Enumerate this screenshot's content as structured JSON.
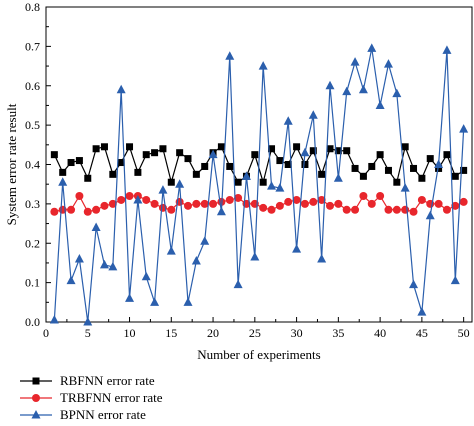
{
  "chart_data": {
    "type": "line",
    "xlabel": "Number of experiments",
    "ylabel": "System error rate result",
    "xlim": [
      0,
      51
    ],
    "ylim": [
      0.0,
      0.8
    ],
    "xticks": [
      0,
      5,
      10,
      15,
      20,
      25,
      30,
      35,
      40,
      45,
      50
    ],
    "yticks": [
      0.0,
      0.1,
      0.2,
      0.3,
      0.4,
      0.5,
      0.6,
      0.7,
      0.8
    ],
    "x": [
      1,
      2,
      3,
      4,
      5,
      6,
      7,
      8,
      9,
      10,
      11,
      12,
      13,
      14,
      15,
      16,
      17,
      18,
      19,
      20,
      21,
      22,
      23,
      24,
      25,
      26,
      27,
      28,
      29,
      30,
      31,
      32,
      33,
      34,
      35,
      36,
      37,
      38,
      39,
      40,
      41,
      42,
      43,
      44,
      45,
      46,
      47,
      48,
      49,
      50
    ],
    "grid": false,
    "legend_position": "bottom-left",
    "series": [
      {
        "name": "RBFNN error rate",
        "color": "#000000",
        "marker": "square",
        "values": [
          0.425,
          0.38,
          0.405,
          0.41,
          0.365,
          0.44,
          0.445,
          0.375,
          0.405,
          0.445,
          0.38,
          0.425,
          0.43,
          0.44,
          0.355,
          0.43,
          0.415,
          0.375,
          0.395,
          0.43,
          0.445,
          0.395,
          0.355,
          0.37,
          0.425,
          0.355,
          0.44,
          0.41,
          0.4,
          0.445,
          0.4,
          0.435,
          0.375,
          0.44,
          0.435,
          0.435,
          0.39,
          0.37,
          0.395,
          0.425,
          0.385,
          0.355,
          0.445,
          0.39,
          0.365,
          0.415,
          0.39,
          0.425,
          0.37,
          0.385
        ]
      },
      {
        "name": "TRBFNN error rate",
        "color": "#e8262c",
        "marker": "circle",
        "values": [
          0.28,
          0.285,
          0.285,
          0.32,
          0.28,
          0.285,
          0.295,
          0.3,
          0.31,
          0.32,
          0.32,
          0.31,
          0.3,
          0.29,
          0.285,
          0.305,
          0.295,
          0.3,
          0.3,
          0.3,
          0.305,
          0.31,
          0.315,
          0.3,
          0.3,
          0.29,
          0.285,
          0.295,
          0.305,
          0.31,
          0.3,
          0.305,
          0.31,
          0.295,
          0.3,
          0.285,
          0.285,
          0.32,
          0.3,
          0.32,
          0.285,
          0.285,
          0.285,
          0.28,
          0.31,
          0.3,
          0.3,
          0.285,
          0.295,
          0.305
        ]
      },
      {
        "name": "BPNN error rate",
        "color": "#2b5fad",
        "marker": "triangle",
        "values": [
          0.005,
          0.355,
          0.105,
          0.16,
          0.0,
          0.24,
          0.145,
          0.14,
          0.59,
          0.06,
          0.31,
          0.115,
          0.05,
          0.335,
          0.18,
          0.35,
          0.05,
          0.155,
          0.205,
          0.425,
          0.28,
          0.675,
          0.095,
          0.37,
          0.165,
          0.65,
          0.345,
          0.34,
          0.51,
          0.185,
          0.43,
          0.525,
          0.16,
          0.6,
          0.365,
          0.585,
          0.66,
          0.59,
          0.695,
          0.55,
          0.655,
          0.58,
          0.34,
          0.095,
          0.025,
          0.27,
          0.4,
          0.69,
          0.105,
          0.49
        ]
      }
    ]
  }
}
